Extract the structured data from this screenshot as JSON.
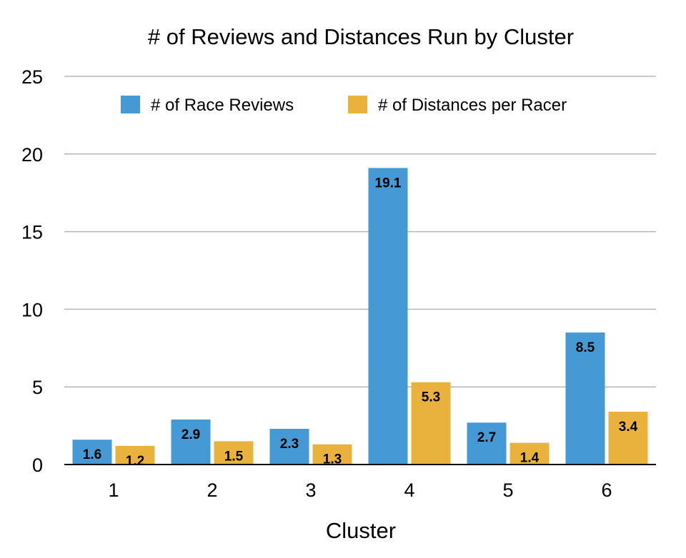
{
  "chart_data": {
    "type": "bar",
    "title": "# of Reviews and Distances Run by Cluster",
    "xlabel": "Cluster",
    "ylabel": "",
    "categories": [
      "1",
      "2",
      "3",
      "4",
      "5",
      "6"
    ],
    "series": [
      {
        "name": "# of Race Reviews",
        "color": "#4599d4",
        "values": [
          1.6,
          2.9,
          2.3,
          19.1,
          2.7,
          8.5
        ]
      },
      {
        "name": "# of Distances per Racer",
        "color": "#e9b23d",
        "values": [
          1.2,
          1.5,
          1.3,
          5.3,
          1.4,
          3.4
        ]
      }
    ],
    "ylim": [
      0,
      25
    ],
    "yticks": [
      "0",
      "5",
      "10",
      "15",
      "20",
      "25"
    ],
    "grid": true,
    "legend_position": "top"
  }
}
